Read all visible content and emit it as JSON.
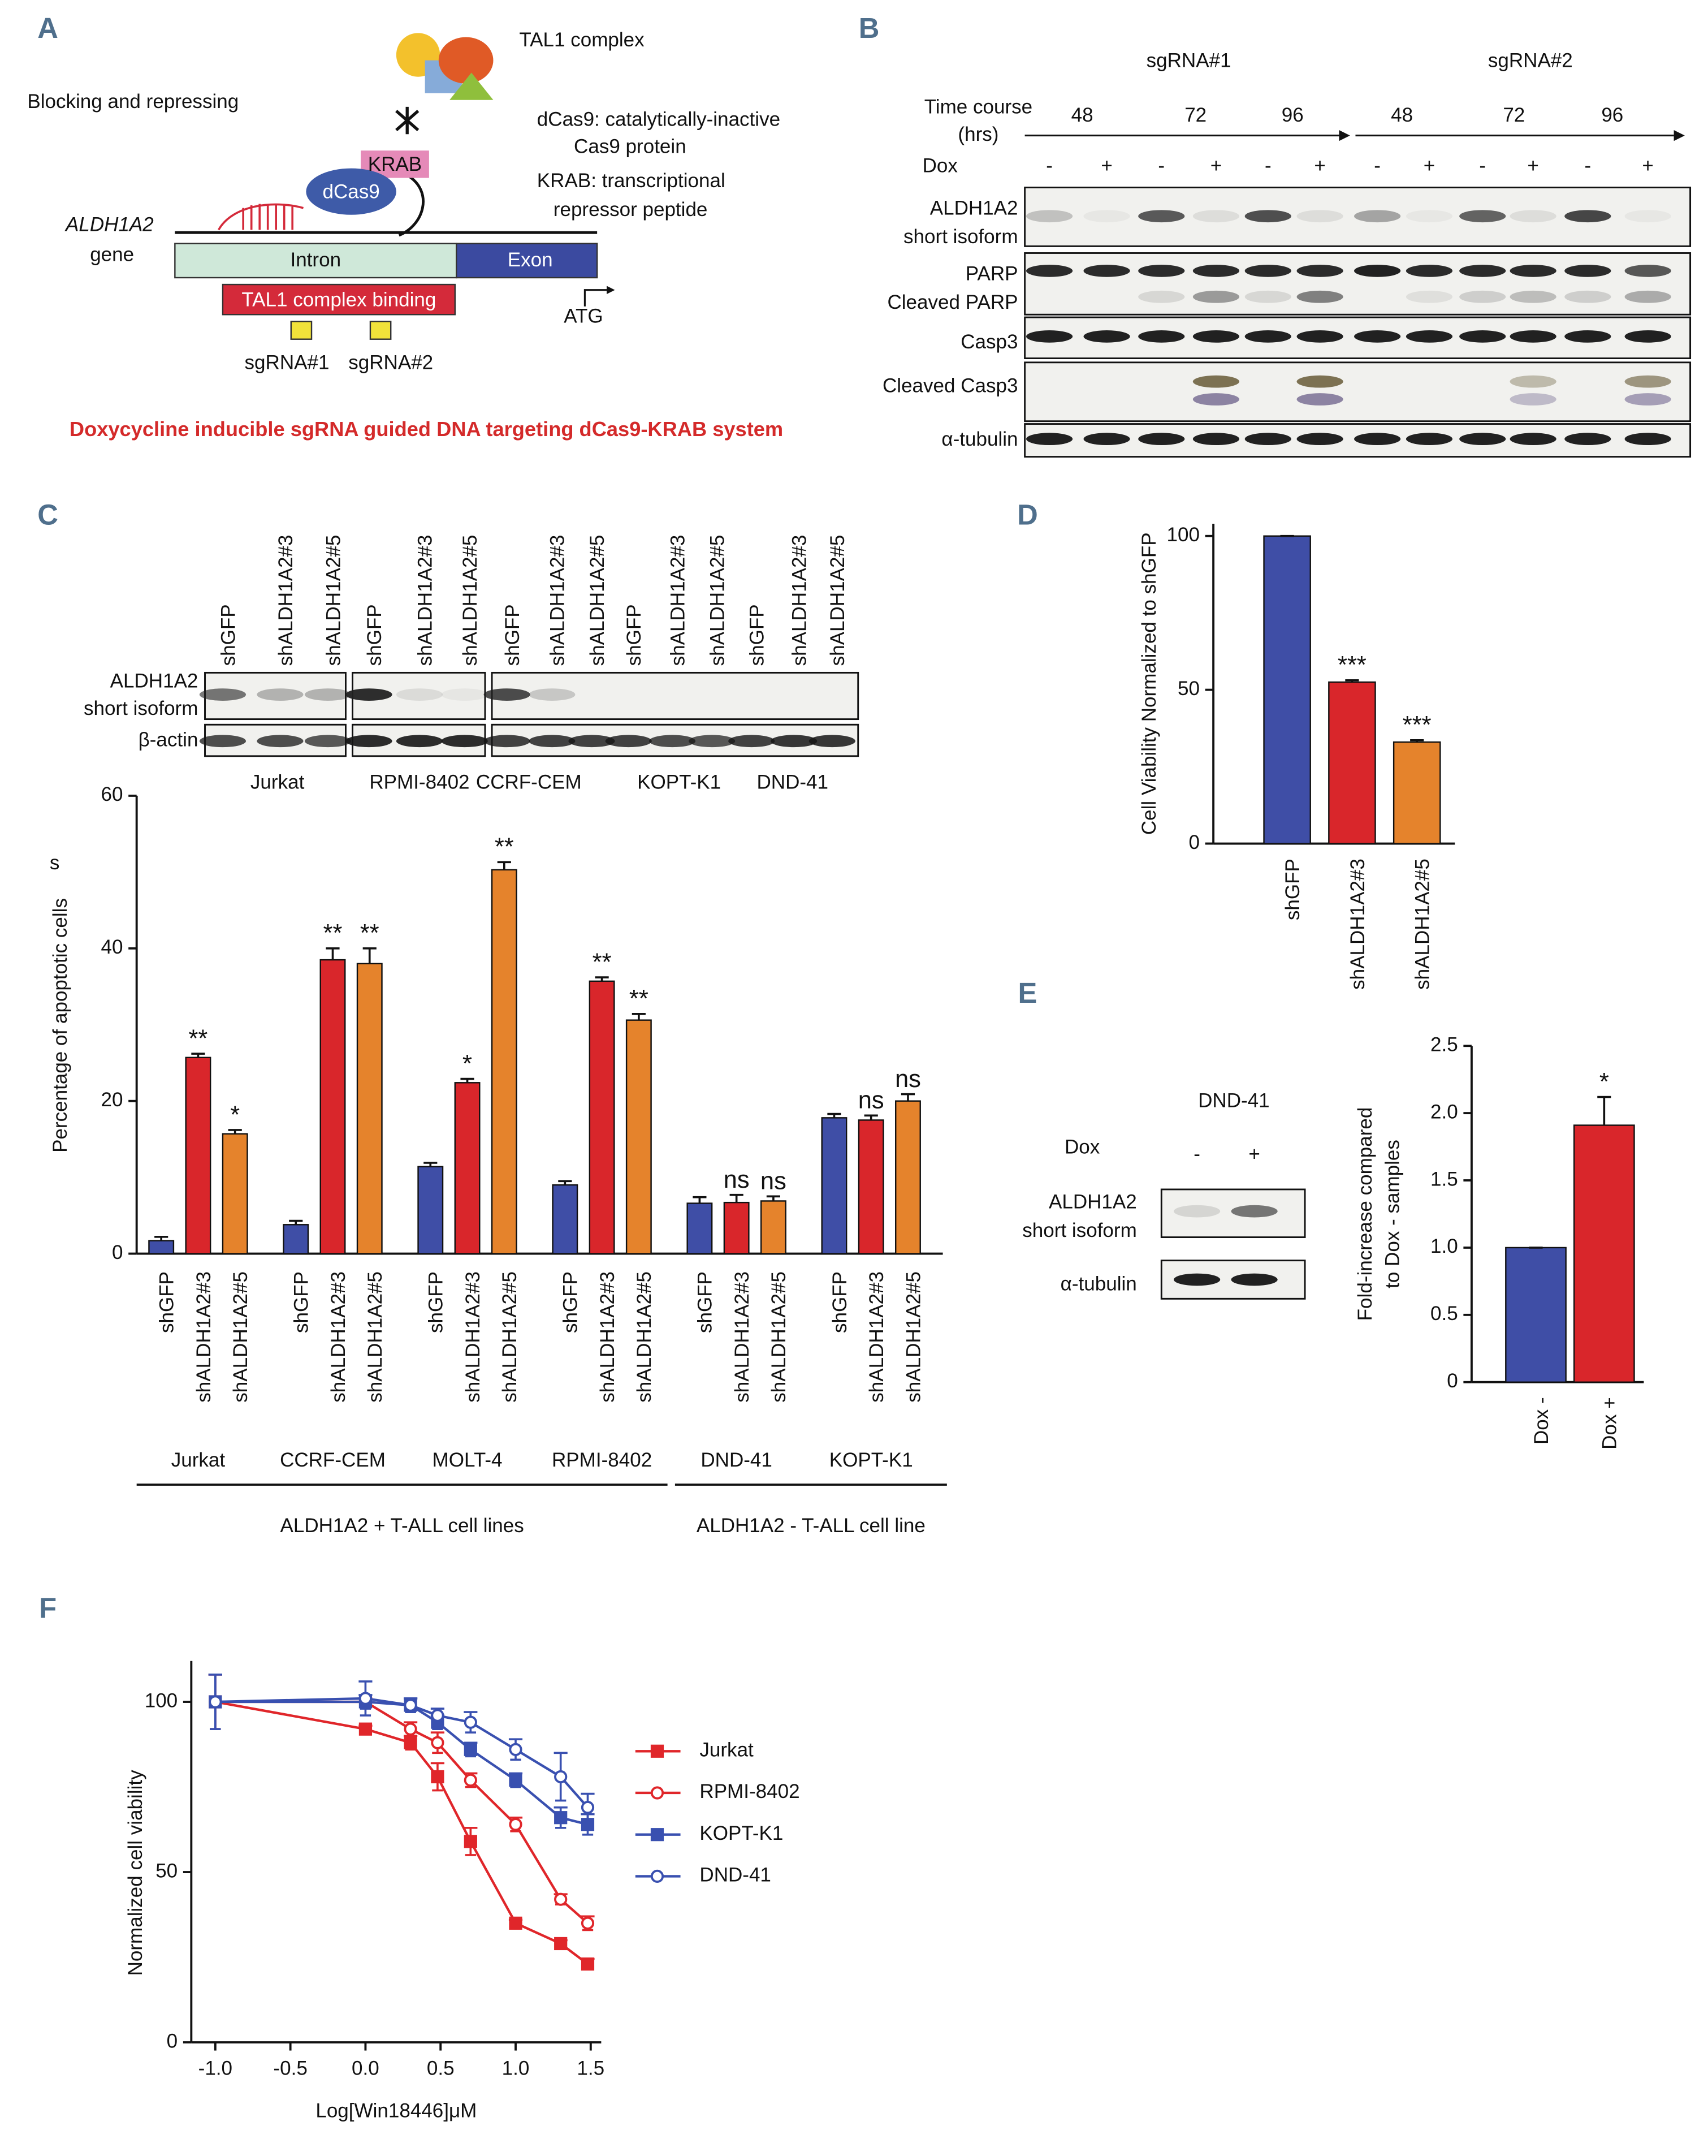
{
  "panel_labels": [
    "A",
    "B",
    "C",
    "D",
    "E",
    "F"
  ],
  "panel_a": {
    "complex": "TAL1 complex",
    "action": "Blocking and repressing",
    "definitions": [
      [
        "dCas9:  catalytically-inactive",
        "Cas9 protein"
      ],
      [
        "KRAB:  transcriptional",
        "repressor peptide"
      ]
    ],
    "krab": "KRAB",
    "dcas9": "dCas9",
    "gene": [
      "ALDH1A2",
      "gene"
    ],
    "intron": "Intron",
    "exon": "Exon",
    "binding": "TAL1 complex binding",
    "atg": "ATG",
    "guides": [
      "sgRNA#1",
      "sgRNA#2"
    ],
    "caption": "Doxycycline inducible sgRNA guided DNA targeting dCas9-KRAB system"
  },
  "panel_b": {
    "guides": [
      "sgRNA#1",
      "sgRNA#2"
    ],
    "time_course": [
      "Time course",
      "(hrs)"
    ],
    "times": [
      48,
      72,
      96,
      48,
      72,
      96
    ],
    "dox": "Dox",
    "dox_signs": [
      "-",
      "+",
      "-",
      "+",
      "-",
      "+",
      "-",
      "+",
      "-",
      "+",
      "-",
      "+"
    ],
    "rows": [
      [
        "ALDH1A2",
        "short isoform"
      ],
      [
        "PARP",
        "Cleaved PARP"
      ],
      [
        "Casp3"
      ],
      [
        "Cleaved Casp3"
      ],
      [
        "α-tubulin"
      ]
    ]
  },
  "panel_c_blot": {
    "lanes": [
      "shGFP",
      "shALDH1A2#3",
      "shALDH1A2#5",
      "shGFP",
      "shALDH1A2#3",
      "shALDH1A2#5",
      "shGFP",
      "shALDH1A2#3",
      "shALDH1A2#5",
      "shGFP",
      "shALDH1A2#3",
      "shALDH1A2#5",
      "shGFP",
      "shALDH1A2#3",
      "shALDH1A2#5"
    ],
    "rows": [
      [
        "ALDH1A2",
        "short isoform"
      ],
      [
        "β-actin"
      ]
    ],
    "cell_lines": [
      "Jurkat",
      "RPMI-8402",
      "CCRF-CEM",
      "KOPT-K1",
      "DND-41"
    ]
  },
  "panel_e_blot": {
    "cell_line": "DND-41",
    "dox": "Dox",
    "dox_signs": [
      "-",
      "+"
    ],
    "rows": [
      [
        "ALDH1A2",
        "short isoform"
      ],
      [
        "α-tubulin"
      ]
    ]
  },
  "chart_data": [
    {
      "type": "grouped-bar",
      "ylabel": "Percentage of apoptotic cells",
      "axis_fragment": "s",
      "categories": [
        "Jurkat",
        "CCRF-CEM",
        "MOLT-4",
        "RPMI-8402",
        "DND-41",
        "KOPT-K1"
      ],
      "groups": [
        "ALDH1A2 + T-ALL cell lines",
        "ALDH1A2 - T-ALL cell line"
      ],
      "series": [
        {
          "name": "shGFP",
          "color": "#3f4ea6",
          "values": [
            1.7,
            3.8,
            11.4,
            9.0,
            6.6,
            17.8
          ],
          "errors": [
            0.5,
            0.5,
            0.5,
            0.5,
            0.8,
            0.5
          ]
        },
        {
          "name": "shALDH1A2#3",
          "color": "#d9262b",
          "values": [
            25.7,
            38.5,
            22.4,
            35.7,
            6.7,
            17.5
          ],
          "errors": [
            0.5,
            1.5,
            0.5,
            0.5,
            1.0,
            0.6
          ],
          "significance": [
            "**",
            "**",
            "*",
            "**",
            "ns",
            "ns"
          ]
        },
        {
          "name": "shALDH1A2#5",
          "color": "#e5832c",
          "values": [
            15.7,
            38.0,
            50.3,
            30.6,
            6.9,
            20.0
          ],
          "errors": [
            0.5,
            2.0,
            1.0,
            0.8,
            0.6,
            0.9
          ],
          "significance": [
            "*",
            "**",
            "**",
            "**",
            "ns",
            "ns"
          ]
        }
      ],
      "ylim": [
        0,
        60
      ],
      "yticks": [
        0,
        20,
        40,
        60
      ]
    },
    {
      "type": "bar",
      "ylabel": "Cell Viability Normalized to shGFP",
      "categories": [
        "shGFP",
        "shALDH1A2#3",
        "shALDH1A2#5"
      ],
      "colors": [
        "#3f4ea6",
        "#d9262b",
        "#e5832c"
      ],
      "values": [
        100,
        52.5,
        33
      ],
      "errors": [
        0,
        0.6,
        0.6
      ],
      "significance": [
        null,
        "***",
        "***"
      ],
      "ylim": [
        0,
        104
      ],
      "yticks": [
        0,
        50,
        100
      ]
    },
    {
      "type": "bar",
      "ylabel": [
        "Fold-increase compared",
        "to Dox - samples"
      ],
      "categories": [
        "Dox -",
        "Dox +"
      ],
      "colors": [
        "#3f4ea6",
        "#d9262b"
      ],
      "values": [
        1.0,
        1.91
      ],
      "errors": [
        0,
        0.21
      ],
      "significance": [
        null,
        "*"
      ],
      "ylim": [
        0,
        2.5
      ],
      "yticks": [
        0,
        0.5,
        {
          "value": 1.0,
          "label": "1.0"
        },
        1.5,
        {
          "value": 2.0,
          "label": "2.0"
        },
        2.5
      ]
    },
    {
      "type": "line",
      "xlabel": "Log[Win18446]μM",
      "ylabel": "Normalized cell viability",
      "x": [
        -1,
        0,
        0.3,
        0.48,
        0.7,
        1.0,
        1.3,
        1.48
      ],
      "series": [
        {
          "name": "Jurkat",
          "color": "#e0262a",
          "marker": "square",
          "filled": true,
          "values": [
            100,
            92,
            88,
            78,
            59,
            35,
            29,
            23
          ],
          "errors": [
            8,
            1,
            2,
            4,
            4,
            1,
            1,
            1.5
          ]
        },
        {
          "name": "RPMI-8402",
          "color": "#e0262a",
          "marker": "circle",
          "filled": false,
          "values": [
            100,
            100,
            92,
            88,
            77,
            64,
            42,
            35
          ],
          "errors": [
            8,
            1,
            2,
            3,
            2,
            2,
            1.5,
            2
          ]
        },
        {
          "name": "KOPT-K1",
          "color": "#3950b0",
          "marker": "square",
          "filled": true,
          "values": [
            100,
            100,
            99,
            94,
            86,
            77,
            66,
            64
          ],
          "errors": [
            8,
            2,
            2,
            2,
            2,
            2,
            3,
            3
          ]
        },
        {
          "name": "DND-41",
          "color": "#3950b0",
          "marker": "circle",
          "filled": false,
          "values": [
            100,
            101,
            99,
            96,
            94,
            86,
            78,
            69
          ],
          "errors": [
            8,
            5,
            2,
            2,
            3,
            3,
            7,
            4
          ]
        }
      ],
      "xlim": [
        -1.16,
        1.57
      ],
      "ylim": [
        0,
        112
      ],
      "xticks": [
        {
          "value": -1.0,
          "label": "-1.0"
        },
        -0.5,
        {
          "value": 0.0,
          "label": "0.0"
        },
        0.5,
        {
          "value": 1.0,
          "label": "1.0"
        },
        1.5
      ],
      "yticks": [
        0,
        50,
        100
      ],
      "legend": "right"
    }
  ]
}
